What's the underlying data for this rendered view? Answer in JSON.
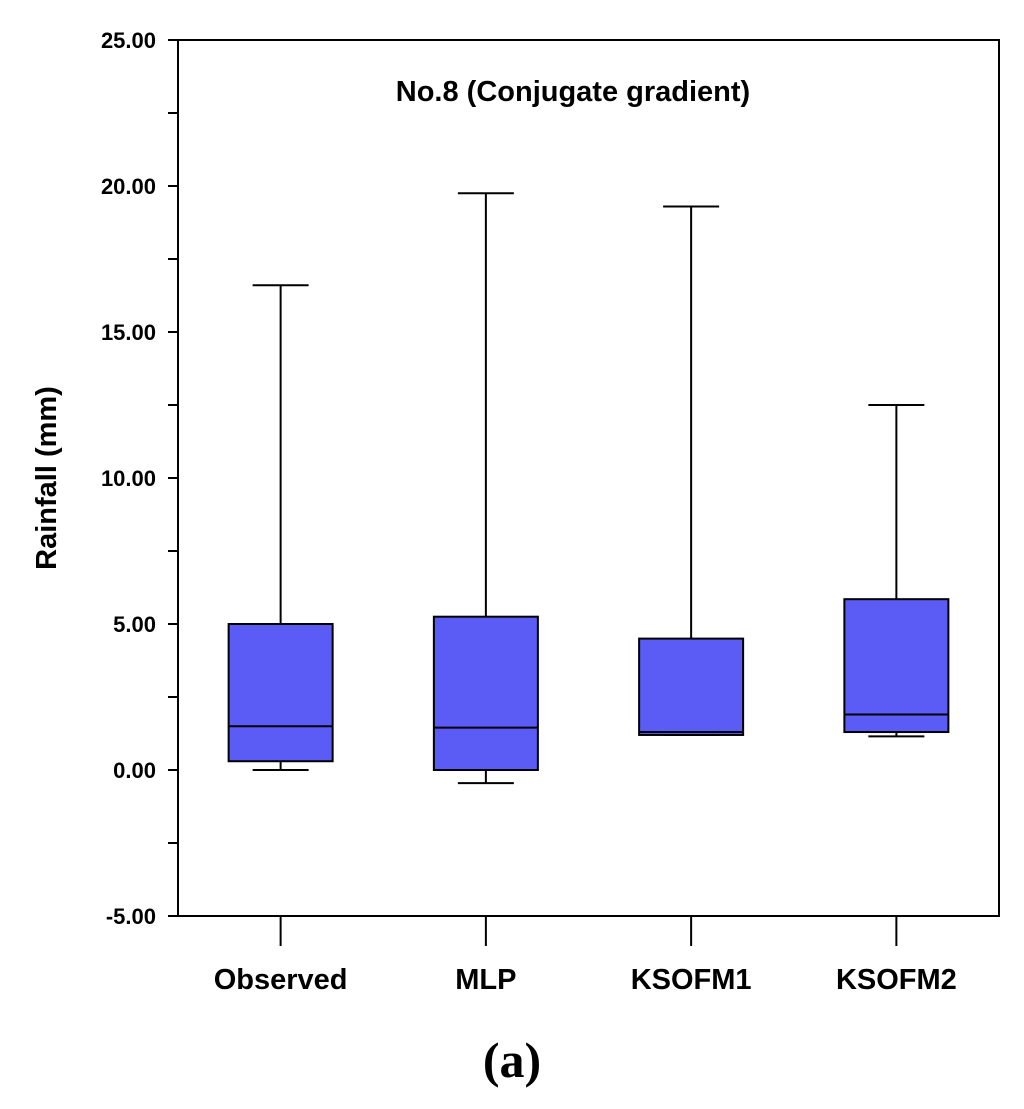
{
  "chart_data": {
    "type": "box",
    "title": "No.8 (Conjugate gradient)",
    "xlabel": "",
    "ylabel": "Rainfall (mm)",
    "ylim": [
      -5,
      25
    ],
    "yticks": [
      -5,
      0,
      5,
      10,
      15,
      20,
      25
    ],
    "ytick_labels": [
      "-5.00",
      "0.00",
      "5.00",
      "10.00",
      "15.00",
      "20.00",
      "25.00"
    ],
    "categories": [
      "Observed",
      "MLP",
      "KSOFM1",
      "KSOFM2"
    ],
    "boxes": [
      {
        "name": "Observed",
        "whisker_low": 0.0,
        "q1": 0.3,
        "median": 1.5,
        "q3": 5.0,
        "whisker_high": 16.6
      },
      {
        "name": "MLP",
        "whisker_low": -0.45,
        "q1": 0.0,
        "median": 1.45,
        "q3": 5.25,
        "whisker_high": 19.75
      },
      {
        "name": "KSOFM1",
        "whisker_low": 1.2,
        "q1": 1.2,
        "median": 1.3,
        "q3": 4.5,
        "whisker_high": 19.3
      },
      {
        "name": "KSOFM2",
        "whisker_low": 1.15,
        "q1": 1.3,
        "median": 1.9,
        "q3": 5.85,
        "whisker_high": 12.5
      }
    ],
    "box_color": "#5b5cf5",
    "grid": false
  },
  "caption": {
    "open": "(",
    "letter": "a",
    "close": ")"
  }
}
